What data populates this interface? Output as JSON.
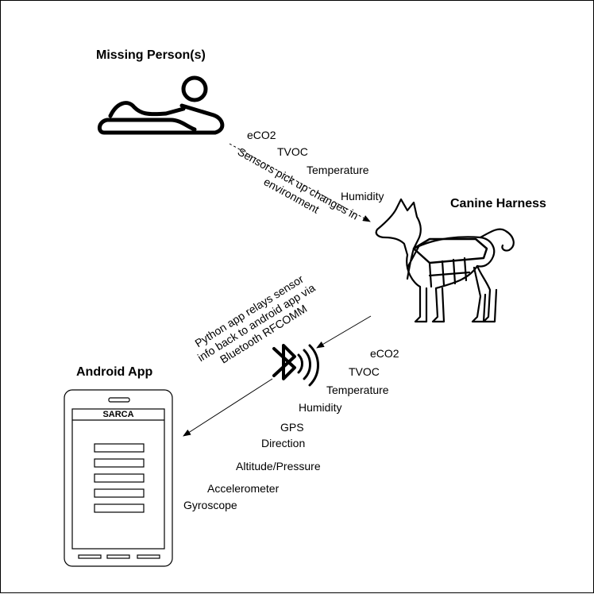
{
  "headings": {
    "missing_person": "Missing Person(s)",
    "canine_harness": "Canine Harness",
    "android_app": "Android App"
  },
  "top_sensors": [
    "eCO2",
    "TVOC",
    "Temperature",
    "Humidity"
  ],
  "top_caption": [
    "Sensors pick up changes in",
    "environment"
  ],
  "bottom_sensors": [
    "eCO2",
    "TVOC",
    "Temperature",
    "Humidity",
    "GPS",
    "Direction",
    "Altitude/Pressure",
    "Accelerometer",
    "Gyroscope"
  ],
  "bottom_caption": [
    "Python app relays sensor",
    "info back to android app via",
    "Bluetooth RFCOMM"
  ],
  "phone": {
    "title": "SARCA",
    "button_count": 5,
    "nav_bar_count": 3
  },
  "icons": {
    "person": "person-lying-icon",
    "dog": "dog-with-harness-icon",
    "bluetooth": "bluetooth-icon",
    "phone": "smartphone-icon"
  }
}
